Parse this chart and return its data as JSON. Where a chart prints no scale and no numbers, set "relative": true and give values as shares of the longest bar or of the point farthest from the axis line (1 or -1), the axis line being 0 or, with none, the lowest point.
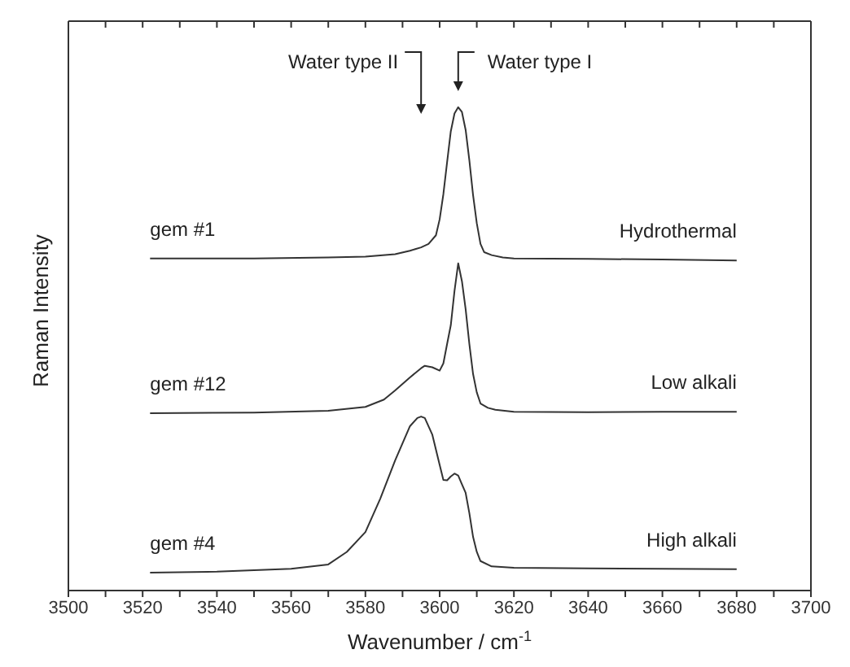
{
  "chart_data": {
    "type": "line",
    "relative": true,
    "xlabel": "Wavenumber / cm$^{-1}$",
    "ylabel": "Raman Intensity",
    "xlim": [
      3500,
      3700
    ],
    "xticks": [
      3500,
      {
        "value": 3510,
        "label": null
      },
      3520,
      {
        "value": 3530,
        "label": null
      },
      3540,
      {
        "value": 3550,
        "label": null
      },
      3560,
      {
        "value": 3570,
        "label": null
      },
      3580,
      {
        "value": 3590,
        "label": null
      },
      3600,
      {
        "value": 3610,
        "label": null
      },
      3620,
      {
        "value": 3630,
        "label": null
      },
      3640,
      {
        "value": 3650,
        "label": null
      },
      3660,
      {
        "value": 3670,
        "label": null
      },
      3680,
      {
        "value": 3690,
        "label": null
      },
      3700
    ],
    "marker": "none",
    "line_style": "solid",
    "series": [
      {
        "name": "gem #1",
        "color": "#333333",
        "x": [
          3522,
          3550,
          3570,
          3580,
          3588,
          3592,
          3595,
          3597,
          3599,
          3600,
          3601,
          3602,
          3603,
          3604,
          3605,
          3606,
          3607,
          3608,
          3609,
          3610,
          3611,
          3612,
          3614,
          3617,
          3620,
          3640,
          3660,
          3680
        ],
        "values": [
          0.687,
          0.687,
          0.689,
          0.691,
          0.696,
          0.703,
          0.71,
          0.717,
          0.735,
          0.768,
          0.82,
          0.886,
          0.95,
          0.987,
          1,
          0.99,
          0.953,
          0.89,
          0.818,
          0.76,
          0.717,
          0.7,
          0.694,
          0.689,
          0.687,
          0.686,
          0.685,
          0.683
        ]
      },
      {
        "name": "gem #12",
        "color": "#333333",
        "x": [
          3522,
          3550,
          3570,
          3580,
          3585,
          3588,
          3592,
          3595,
          3596,
          3598,
          3600,
          3601,
          3602,
          3603,
          3604,
          3605,
          3606,
          3607,
          3608,
          3609,
          3610,
          3611,
          3613,
          3615,
          3620,
          3640,
          3660,
          3680
        ],
        "values": [
          0.367,
          0.368,
          0.372,
          0.38,
          0.395,
          0.414,
          0.441,
          0.46,
          0.465,
          0.462,
          0.455,
          0.47,
          0.51,
          0.549,
          0.62,
          0.677,
          0.64,
          0.582,
          0.51,
          0.448,
          0.41,
          0.387,
          0.378,
          0.374,
          0.37,
          0.369,
          0.37,
          0.37
        ]
      },
      {
        "name": "gem #4",
        "color": "#333333",
        "x": [
          3522,
          3540,
          3560,
          3570,
          3575,
          3580,
          3584,
          3588,
          3592,
          3594,
          3595,
          3596,
          3598,
          3600,
          3601,
          3602,
          3603,
          3604,
          3605,
          3606,
          3607,
          3608,
          3609,
          3610,
          3611,
          3614,
          3620,
          3640,
          3660,
          3680
        ],
        "values": [
          0.037,
          0.039,
          0.045,
          0.054,
          0.08,
          0.121,
          0.19,
          0.269,
          0.34,
          0.357,
          0.36,
          0.357,
          0.323,
          0.26,
          0.229,
          0.228,
          0.236,
          0.242,
          0.238,
          0.22,
          0.202,
          0.16,
          0.111,
          0.08,
          0.061,
          0.05,
          0.047,
          0.046,
          0.045,
          0.044
        ]
      }
    ],
    "annotations": [
      "Hydrothermal",
      "Low alkali",
      "High alkali",
      "Water type II",
      "Water type I"
    ]
  }
}
